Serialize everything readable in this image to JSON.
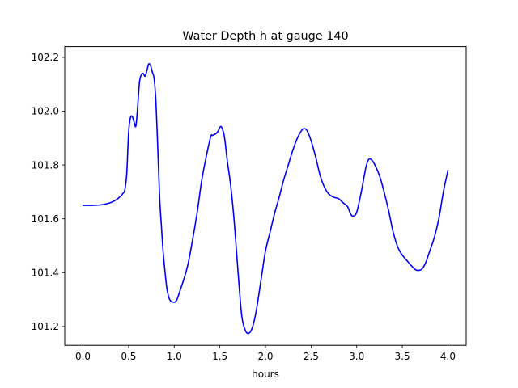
{
  "chart_data": {
    "type": "line",
    "title": "Water Depth h at gauge 140",
    "xlabel": "hours",
    "ylabel": "",
    "xlim": [
      -0.2,
      4.2
    ],
    "ylim": [
      101.13,
      102.24
    ],
    "xticks": [
      0.0,
      0.5,
      1.0,
      1.5,
      2.0,
      2.5,
      3.0,
      3.5,
      4.0
    ],
    "xtick_labels": [
      "0.0",
      "0.5",
      "1.0",
      "1.5",
      "2.0",
      "2.5",
      "3.0",
      "3.5",
      "4.0"
    ],
    "yticks": [
      101.2,
      101.4,
      101.6,
      101.8,
      102.0,
      102.2
    ],
    "ytick_labels": [
      "101.2",
      "101.4",
      "101.6",
      "101.8",
      "102.0",
      "102.2"
    ],
    "grid": false,
    "series": [
      {
        "color": "#0000ff",
        "x": [
          0.0,
          0.1,
          0.2,
          0.3,
          0.35,
          0.4,
          0.44,
          0.46,
          0.48,
          0.5,
          0.52,
          0.54,
          0.56,
          0.58,
          0.6,
          0.62,
          0.64,
          0.66,
          0.68,
          0.7,
          0.72,
          0.74,
          0.76,
          0.78,
          0.8,
          0.82,
          0.84,
          0.86,
          0.88,
          0.9,
          0.92,
          0.95,
          1.0,
          1.03,
          1.06,
          1.1,
          1.15,
          1.2,
          1.25,
          1.3,
          1.35,
          1.4,
          1.42,
          1.45,
          1.48,
          1.5,
          1.52,
          1.55,
          1.58,
          1.62,
          1.66,
          1.7,
          1.74,
          1.78,
          1.82,
          1.86,
          1.9,
          1.95,
          2.0,
          2.05,
          2.1,
          2.15,
          2.2,
          2.25,
          2.3,
          2.35,
          2.4,
          2.43,
          2.46,
          2.5,
          2.55,
          2.6,
          2.65,
          2.7,
          2.75,
          2.8,
          2.85,
          2.9,
          2.93,
          2.96,
          3.0,
          3.05,
          3.1,
          3.13,
          3.16,
          3.2,
          3.25,
          3.3,
          3.35,
          3.4,
          3.45,
          3.5,
          3.55,
          3.6,
          3.65,
          3.7,
          3.73,
          3.76,
          3.8,
          3.85,
          3.9,
          3.95,
          4.0
        ],
        "y": [
          101.65,
          101.65,
          101.652,
          101.66,
          101.668,
          101.68,
          101.695,
          101.71,
          101.77,
          101.92,
          101.975,
          101.98,
          101.96,
          101.945,
          102.02,
          102.11,
          102.135,
          102.14,
          102.13,
          102.15,
          102.175,
          102.17,
          102.145,
          102.12,
          102.03,
          101.86,
          101.68,
          101.57,
          101.47,
          101.4,
          101.34,
          101.3,
          101.29,
          101.3,
          101.33,
          101.37,
          101.43,
          101.52,
          101.62,
          101.74,
          101.83,
          101.905,
          101.91,
          101.915,
          101.925,
          101.94,
          101.94,
          101.905,
          101.82,
          101.72,
          101.58,
          101.4,
          101.24,
          101.185,
          101.175,
          101.2,
          101.26,
          101.37,
          101.48,
          101.55,
          101.62,
          101.68,
          101.745,
          101.8,
          101.855,
          101.9,
          101.93,
          101.935,
          101.925,
          101.89,
          101.83,
          101.76,
          101.715,
          101.69,
          101.68,
          101.675,
          101.66,
          101.645,
          101.62,
          101.61,
          101.625,
          101.7,
          101.79,
          101.82,
          101.82,
          101.8,
          101.76,
          101.7,
          101.63,
          101.55,
          101.495,
          101.465,
          101.445,
          101.425,
          101.41,
          101.41,
          101.42,
          101.44,
          101.48,
          101.53,
          101.6,
          101.7,
          101.78
        ]
      }
    ]
  }
}
